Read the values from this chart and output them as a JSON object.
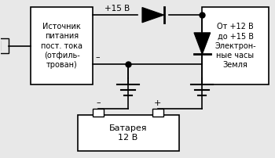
{
  "bg_color": "#e8e8e8",
  "line_color": "#000000",
  "box_fill": "#ffffff",
  "text_color": "#000000",
  "left_box_text": "Источник\nпитания\nпост. тока\n(отфиль-\nтрован)",
  "right_box_text": "От +12 В\nдо +15 В\nЭлектрон-\nные часы\nЗемля",
  "battery_text": "Батарея\n12 В",
  "plus15_label": "+15 В",
  "minus_label": "–",
  "plus_label": "+",
  "font_size_box": 7.0,
  "font_size_label": 7.5
}
